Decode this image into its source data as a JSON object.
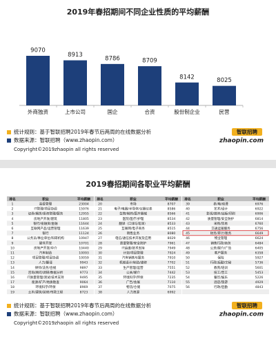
{
  "chart_data": {
    "type": "bar",
    "title": "2019年春招期间不同企业性质的平均薪酬",
    "categories": [
      "外商独资",
      "上市公司",
      "国企",
      "合资",
      "股份制企业",
      "民营"
    ],
    "values": [
      9070,
      8913,
      8786,
      8709,
      8142,
      8025
    ],
    "color": "#1d3f7a"
  },
  "chart_notes": {
    "rule": "统计规则：基于智联招聘2019年春节后两周的在线数据分析",
    "source": "数据来源：智联招聘（www.zhaopin.com）",
    "copyright": "Copyright©2019zhaopin all rights reserved",
    "logo_cn": "智联招聘",
    "logo_en": "zhaopin.com"
  },
  "table": {
    "title": "2019春招期间各职业平均薪酬",
    "columns": [
      "排名",
      "职业",
      "平均薪酬"
    ],
    "highlight_row": 44,
    "rows": [
      [
        "1",
        "高级管理",
        "23004"
      ],
      [
        "2",
        "IT管理/项目协调",
        "15976"
      ],
      [
        "3",
        "证券/期货/投资管理/服务",
        "12955"
      ],
      [
        "4",
        "房地产开发/建筑",
        "11805"
      ],
      [
        "5",
        "银行/投融资/金融",
        "11644"
      ],
      [
        "6",
        "互联网产品/运营管理",
        "11639"
      ],
      [
        "7",
        "银行",
        "11124"
      ],
      [
        "8",
        "公务员/事业单位/科研机构",
        "10947"
      ],
      [
        "9",
        "硬件开发",
        "10701"
      ],
      [
        "10",
        "房地产开发/中介",
        "10440"
      ],
      [
        "11",
        "汽车制造",
        "10093"
      ],
      [
        "12",
        "项目管理/项目协调",
        "10059"
      ],
      [
        "13",
        "人力/翻译",
        "9943"
      ],
      [
        "14",
        "律师/法务/合规",
        "9897"
      ],
      [
        "15",
        "咨询/顾问/调研/数据分析",
        "9773"
      ],
      [
        "16",
        "IT质量管理/测试/技术支持",
        "9495"
      ],
      [
        "17",
        "能源/矿产/地质勘查",
        "9064"
      ],
      [
        "18",
        "环境科学/环保",
        "8969"
      ],
      [
        "19",
        "土木/建筑/装修/市政工程",
        "8723"
      ],
      [
        "20",
        "市场",
        "8707"
      ],
      [
        "21",
        "电子/电器/半导体/仪器仪表",
        "8586"
      ],
      [
        "22",
        "生物/制药/医疗器械",
        "8566"
      ],
      [
        "23",
        "医院/医疗/护理",
        "8534"
      ],
      [
        "24",
        "翻译（口译与笔译）",
        "8533"
      ],
      [
        "25",
        "互联网/电子商务",
        "8515"
      ],
      [
        "26",
        "销售业务",
        "8080"
      ],
      [
        "27",
        "电信/通信技术开发及应用",
        "8029"
      ],
      [
        "28",
        "质量管理/安全防护",
        "7961"
      ],
      [
        "29",
        "IT运维/技术支持",
        "7949"
      ],
      [
        "30",
        "计划/项目管理",
        "7924"
      ],
      [
        "31",
        "汽车销售与服务",
        "7910"
      ],
      [
        "32",
        "机械设计/制造/维修",
        "7702"
      ],
      [
        "33",
        "生产管理/运营",
        "7551"
      ],
      [
        "34",
        "公关/媒介",
        "7442"
      ],
      [
        "35",
        "环境科学/环保",
        "7235"
      ],
      [
        "36",
        "广告/会展",
        "7110"
      ],
      [
        "37",
        "物流/仓储",
        "7075"
      ],
      [
        "38",
        "人力资源",
        "6992"
      ],
      [
        "39",
        "表/电/动漫",
        "6976"
      ],
      [
        "40",
        "艺术/设计",
        "6922"
      ],
      [
        "41",
        "影视/媒体/出版/印刷",
        "6906"
      ],
      [
        "42",
        "质量管理/安全防护",
        "6814"
      ],
      [
        "43",
        "采购/贸易",
        "6760"
      ],
      [
        "44",
        "交通运输服务",
        "6756"
      ],
      [
        "45",
        "财务/审计/税务",
        "6649"
      ],
      [
        "46",
        "物业管理",
        "6624"
      ],
      [
        "47",
        "销售行政/商务",
        "6484"
      ],
      [
        "48",
        "公关/媒介/广告",
        "6405"
      ],
      [
        "49",
        "客户服务",
        "6358"
      ],
      [
        "50",
        "保险",
        "5927"
      ],
      [
        "51",
        "行政/后勤/文秘",
        "5736"
      ],
      [
        "52",
        "教育/培训",
        "5601"
      ],
      [
        "53",
        "技工/普工",
        "5453"
      ],
      [
        "54",
        "餐饮/娱乐",
        "5226"
      ],
      [
        "55",
        "酒店/旅游",
        "4929"
      ],
      [
        "56",
        "行政/后勤",
        "4843"
      ]
    ]
  },
  "table_notes": {
    "rule": "统计规则：基于智联招聘2019年春节后两周的在线数据分析",
    "source": "数据来源：智联招聘（www.zhaopin.com）",
    "copyright": "Copyright©2019zhaopin all rights reserved",
    "logo_cn": "智联招聘",
    "logo_en": "zhaopin.com"
  }
}
